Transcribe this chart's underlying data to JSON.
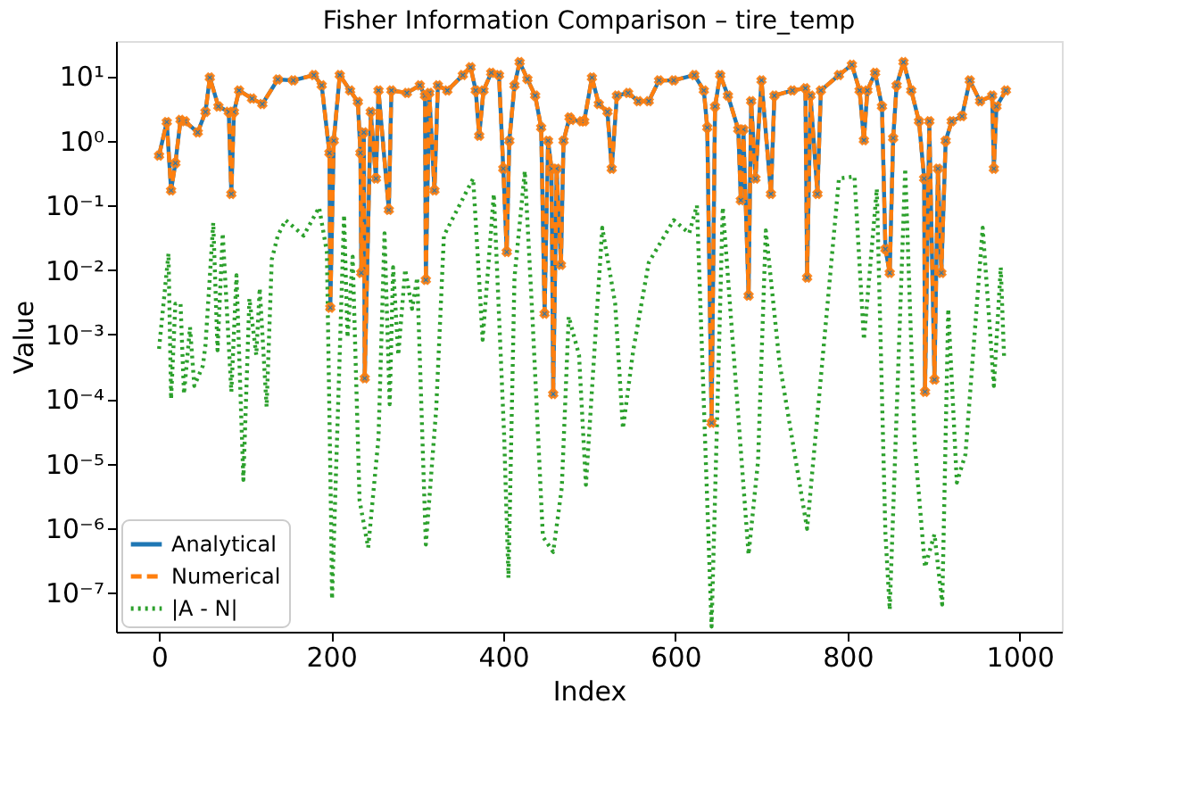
{
  "chart_data": {
    "type": "line",
    "title": "Fisher Information Comparison – tire_temp",
    "xlabel": "Index",
    "ylabel": "Value",
    "xlim": [
      -50,
      1049
    ],
    "xticks": [
      0,
      200,
      400,
      600,
      800,
      1000
    ],
    "ylim": [
      2.5e-08,
      35
    ],
    "yticks": [
      {
        "value": 1e-07,
        "label": "10⁻⁷"
      },
      {
        "value": 1e-06,
        "label": "10⁻⁶"
      },
      {
        "value": 1e-05,
        "label": "10⁻⁵"
      },
      {
        "value": 0.0001,
        "label": "10⁻⁴"
      },
      {
        "value": 0.001,
        "label": "10⁻³"
      },
      {
        "value": 0.01,
        "label": "10⁻²"
      },
      {
        "value": 0.1,
        "label": "10⁻¹"
      },
      {
        "value": 1,
        "label": "10⁰"
      },
      {
        "value": 10,
        "label": "10¹"
      }
    ],
    "log": "y",
    "grid": false,
    "legend": "bottom left",
    "series": [
      {
        "name": "Analytical",
        "color": "#1f77b4",
        "marker": "circle",
        "line_style": "solid",
        "x": [
          0,
          9,
          14,
          19,
          25,
          30,
          45,
          54,
          59,
          69,
          81,
          84,
          87,
          93,
          108,
          120,
          138,
          156,
          180,
          189,
          198,
          199,
          203,
          210,
          222,
          231,
          234,
          235,
          238,
          239,
          246,
          252,
          255,
          267,
          270,
          288,
          303,
          309,
          310,
          314,
          320,
          324,
          335,
          353,
          362,
          368,
          372,
          377,
          386,
          395,
          400,
          404,
          407,
          413,
          419,
          428,
          437,
          444,
          448,
          452,
          456,
          458,
          462,
          467,
          470,
          477,
          479,
          491,
          494,
          503,
          511,
          521,
          526,
          532,
          545,
          557,
          569,
          581,
          598,
          622,
          633,
          637,
          642,
          646,
          652,
          661,
          673,
          676,
          679,
          685,
          688,
          693,
          700,
          711,
          715,
          736,
          751,
          753,
          757,
          765,
          769,
          790,
          805,
          814,
          819,
          823,
          832,
          840,
          844,
          849,
          853,
          857,
          865,
          874,
          883,
          889,
          890,
          895,
          901,
          905,
          909,
          914,
          921,
          933,
          942,
          954,
          968,
          970,
          973,
          984
        ],
        "values": [
          0.59,
          1.95,
          0.17,
          0.45,
          2.1,
          2,
          1.35,
          2.8,
          9.5,
          3.4,
          2.8,
          0.15,
          2.8,
          6,
          4.5,
          3.7,
          8.9,
          8.6,
          10.4,
          7.2,
          0.65,
          0.0026,
          1,
          10.4,
          6,
          4,
          0.65,
          0.009,
          1.35,
          0.00021,
          2.8,
          0.26,
          6,
          0.085,
          6,
          5.5,
          7.2,
          5,
          0.007,
          5.5,
          0.17,
          7.2,
          6,
          10.4,
          13.7,
          6,
          1.2,
          6,
          11.3,
          10.4,
          0.37,
          0.019,
          1,
          7.2,
          16.5,
          9,
          5,
          1.6,
          0.0021,
          1,
          0.37,
          0.00012,
          0.37,
          0.012,
          1,
          2.3,
          2.1,
          2,
          2,
          9.5,
          3.7,
          2.8,
          0.37,
          5,
          5.5,
          4.1,
          4.1,
          8.6,
          8.6,
          10.4,
          6,
          1.6,
          4.3e-05,
          3.4,
          10.4,
          5,
          1.5,
          0.12,
          1.5,
          0.004,
          4.1,
          0.26,
          8.6,
          0.15,
          5,
          6,
          6.5,
          0.0076,
          5,
          0.15,
          6,
          10.4,
          15,
          6,
          1.02,
          6,
          11.3,
          3.4,
          0.021,
          0.009,
          1.1,
          7.2,
          16.5,
          6,
          2,
          0.26,
          0.00013,
          2,
          0.0002,
          0.37,
          0.009,
          1,
          2,
          2.4,
          8.6,
          4.1,
          5,
          0.37,
          3.4,
          6
        ]
      },
      {
        "name": "Numerical",
        "color": "#ff7f0e",
        "marker": "cross",
        "line_style": "dashed",
        "x": [
          0,
          9,
          14,
          19,
          25,
          30,
          45,
          54,
          59,
          69,
          81,
          84,
          87,
          93,
          108,
          120,
          138,
          156,
          180,
          189,
          198,
          199,
          203,
          210,
          222,
          231,
          234,
          235,
          238,
          239,
          246,
          252,
          255,
          267,
          270,
          288,
          303,
          309,
          310,
          314,
          320,
          324,
          335,
          353,
          362,
          368,
          372,
          377,
          386,
          395,
          400,
          404,
          407,
          413,
          419,
          428,
          437,
          444,
          448,
          452,
          456,
          458,
          462,
          467,
          470,
          477,
          479,
          491,
          494,
          503,
          511,
          521,
          526,
          532,
          545,
          557,
          569,
          581,
          598,
          622,
          633,
          637,
          642,
          646,
          652,
          661,
          673,
          676,
          679,
          685,
          688,
          693,
          700,
          711,
          715,
          736,
          751,
          753,
          757,
          765,
          769,
          790,
          805,
          814,
          819,
          823,
          832,
          840,
          844,
          849,
          853,
          857,
          865,
          874,
          883,
          889,
          890,
          895,
          901,
          905,
          909,
          914,
          921,
          933,
          942,
          954,
          968,
          970,
          973,
          984
        ],
        "values": [
          0.59,
          1.95,
          0.17,
          0.45,
          2.1,
          2,
          1.35,
          2.8,
          9.5,
          3.4,
          2.8,
          0.15,
          2.8,
          6,
          4.5,
          3.7,
          8.9,
          8.6,
          10.4,
          7.2,
          0.65,
          0.0026,
          1,
          10.4,
          6,
          4,
          0.65,
          0.009,
          1.35,
          0.00021,
          2.8,
          0.26,
          6,
          0.085,
          6,
          5.5,
          7.2,
          5,
          0.007,
          5.5,
          0.17,
          7.2,
          6,
          10.4,
          13.7,
          6,
          1.2,
          6,
          11.3,
          10.4,
          0.37,
          0.019,
          1,
          7.2,
          16.5,
          9,
          5,
          1.6,
          0.0021,
          1,
          0.37,
          0.00012,
          0.37,
          0.012,
          1,
          2.3,
          2.1,
          2,
          2,
          9.5,
          3.7,
          2.8,
          0.37,
          5,
          5.5,
          4.1,
          4.1,
          8.6,
          8.6,
          10.4,
          6,
          1.6,
          4.3e-05,
          3.4,
          10.4,
          5,
          1.5,
          0.12,
          1.5,
          0.004,
          4.1,
          0.26,
          8.6,
          0.15,
          5,
          6,
          6.5,
          0.0076,
          5,
          0.15,
          6,
          10.4,
          15,
          6,
          1.02,
          6,
          11.3,
          3.4,
          0.021,
          0.009,
          1.1,
          7.2,
          16.5,
          6,
          2,
          0.26,
          0.00013,
          2,
          0.0002,
          0.37,
          0.009,
          1,
          2,
          2.4,
          8.6,
          4.1,
          5,
          0.37,
          3.4,
          6
        ]
      },
      {
        "name": "|A - N|",
        "color": "#2ca02c",
        "marker": "none",
        "line_style": "dotted",
        "x": [
          0,
          11,
          14,
          19,
          25,
          29,
          36,
          41,
          51,
          54,
          63,
          68,
          74,
          84,
          90,
          98,
          105,
          113,
          117,
          125,
          131,
          138,
          147,
          168,
          186,
          195,
          200,
          201,
          215,
          219,
          225,
          233,
          243,
          255,
          262,
          268,
          272,
          278,
          286,
          294,
          300,
          310,
          322,
          331,
          365,
          376,
          389,
          401,
          406,
          413,
          425,
          434,
          446,
          458,
          468,
          476,
          488,
          496,
          515,
          530,
          539,
          551,
          569,
          598,
          616,
          625,
          642,
          655,
          685,
          696,
          705,
          721,
          753,
          790,
          808,
          819,
          834,
          844,
          849,
          867,
          878,
          890,
          901,
          910,
          917,
          927,
          937,
          957,
          970,
          978,
          982
        ],
        "values": [
          0.0006,
          0.018,
          0.0001,
          0.003,
          0.003,
          0.00012,
          0.0013,
          0.00016,
          0.00033,
          0.0007,
          0.054,
          0.00057,
          0.037,
          0.00013,
          0.0083,
          5.6e-06,
          0.0036,
          0.00048,
          0.0052,
          7.6e-05,
          0.0145,
          0.034,
          0.059,
          0.034,
          0.093,
          0.019,
          1.1e-06,
          8e-08,
          0.071,
          0.0009,
          0.016,
          2.7e-06,
          5e-07,
          2.5e-05,
          0.037,
          8.3e-05,
          0.011,
          0.00048,
          0.0102,
          0.0025,
          0.0076,
          5.6e-07,
          6.9e-05,
          0.034,
          0.26,
          0.00083,
          0.15,
          2.7e-05,
          1.7e-07,
          0.0076,
          0.34,
          0.0017,
          7.4e-07,
          4.3e-07,
          4.3e-06,
          0.0019,
          0.00048,
          4.7e-06,
          0.045,
          0.003,
          3.5e-05,
          0.00057,
          0.013,
          0.059,
          0.037,
          0.1,
          3e-08,
          0.093,
          3.9e-07,
          1.1e-05,
          0.041,
          0.00036,
          9.8e-07,
          0.26,
          0.28,
          0.00083,
          0.18,
          8.1e-07,
          5.5e-08,
          0.37,
          2e-05,
          2.5e-07,
          8.1e-07,
          6.6e-08,
          0.0025,
          5.1e-06,
          1.4e-05,
          0.045,
          0.00016,
          0.011,
          0.0004
        ]
      }
    ]
  }
}
